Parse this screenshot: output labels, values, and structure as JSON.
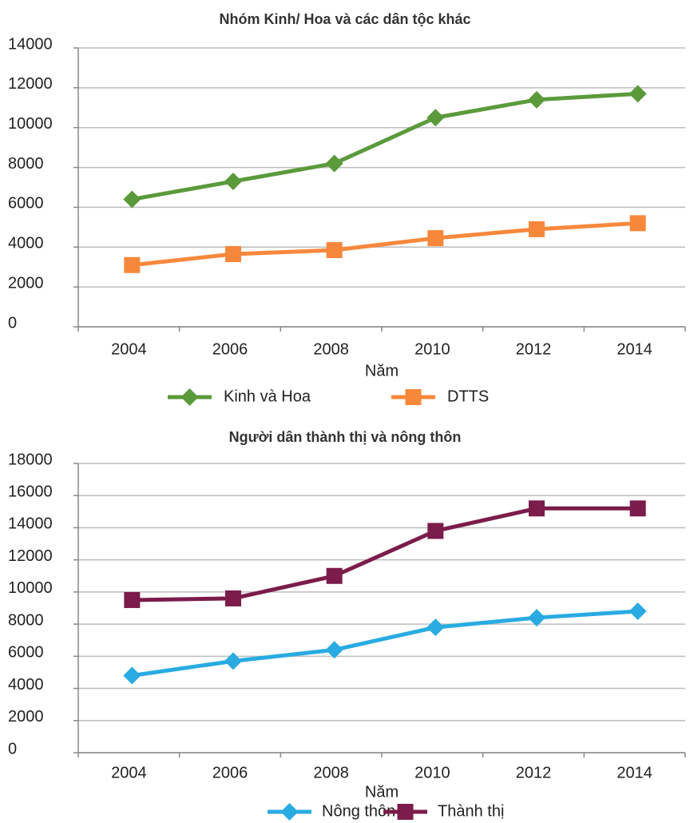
{
  "chart_data": [
    {
      "type": "line",
      "title": "Nhóm Kinh/ Hoa và các dân tộc khác",
      "x_label": "Năm",
      "categories": [
        "2004",
        "2006",
        "2008",
        "2010",
        "2012",
        "2014"
      ],
      "series": [
        {
          "name": "Kinh và Hoa",
          "color": "#5b9a3b",
          "marker": "diamond",
          "values": [
            6400,
            7300,
            8200,
            10500,
            11400,
            11700
          ]
        },
        {
          "name": "DTTS",
          "color": "#f7883b",
          "marker": "square",
          "values": [
            3100,
            3650,
            3850,
            4450,
            4900,
            5200
          ]
        }
      ],
      "ylim": [
        0,
        14000
      ],
      "yticks": [
        0,
        2000,
        4000,
        6000,
        8000,
        10000,
        12000,
        14000
      ],
      "grid": true,
      "legend": "bottom"
    },
    {
      "type": "line",
      "title": "Người dân thành thị và nông thôn",
      "x_label": "Năm",
      "categories": [
        "2004",
        "2006",
        "2008",
        "2010",
        "2012",
        "2014"
      ],
      "series": [
        {
          "name": "Nông thôn",
          "color": "#29abe2",
          "marker": "diamond",
          "values": [
            4800,
            5700,
            6400,
            7800,
            8400,
            8800
          ]
        },
        {
          "name": "Thành thị",
          "color": "#7b1c4a",
          "marker": "square",
          "values": [
            9500,
            9600,
            11000,
            13800,
            15200,
            15200
          ]
        }
      ],
      "ylim": [
        0,
        18000
      ],
      "yticks": [
        0,
        2000,
        4000,
        6000,
        8000,
        10000,
        12000,
        14000,
        16000,
        18000
      ],
      "grid": true,
      "legend": "bottom"
    }
  ]
}
